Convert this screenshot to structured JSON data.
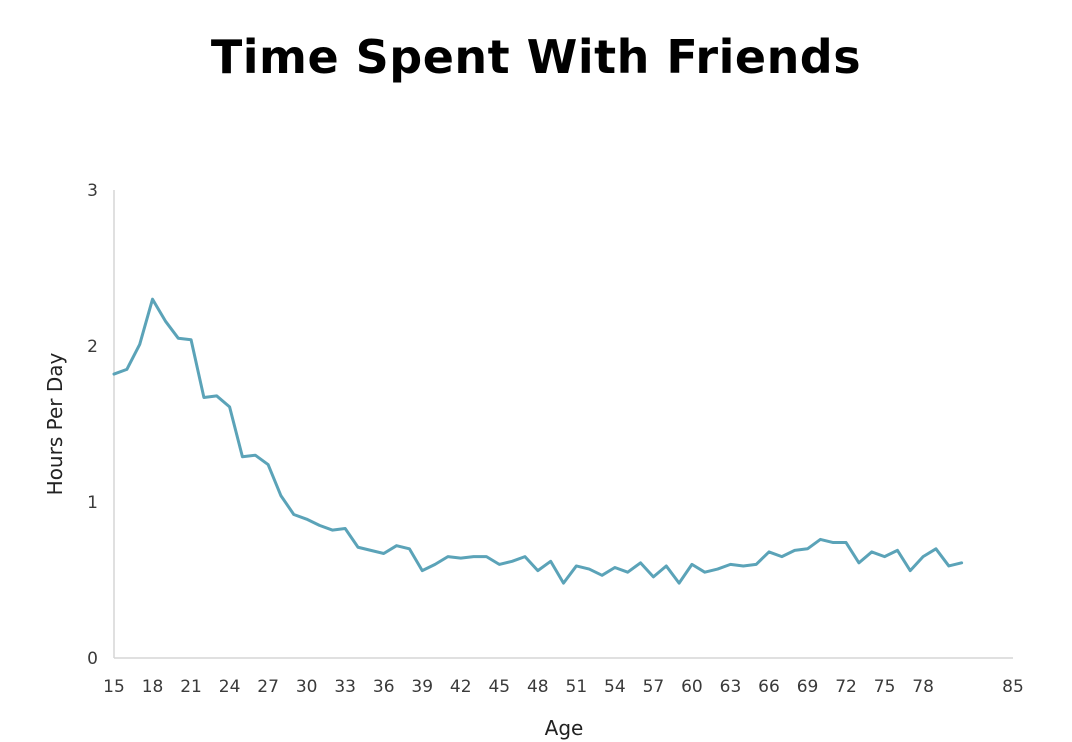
{
  "chart_data": {
    "type": "line",
    "title": "Time Spent With Friends",
    "xlabel": "Age",
    "ylabel": "Hours Per Day",
    "xlim": [
      15,
      85
    ],
    "ylim": [
      0,
      3
    ],
    "xticks": [
      15,
      18,
      21,
      24,
      27,
      30,
      33,
      36,
      39,
      42,
      45,
      48,
      51,
      54,
      57,
      60,
      63,
      66,
      69,
      72,
      75,
      78,
      85
    ],
    "yticks": [
      0,
      1,
      2,
      3
    ],
    "grid": false,
    "legend": "none",
    "line_color": "#5ba3b8",
    "series": [
      {
        "x": [
          15,
          16,
          17,
          18,
          19,
          20,
          21,
          22,
          23,
          24,
          25,
          26,
          27,
          28,
          29,
          30,
          31,
          32,
          33,
          34,
          35,
          36,
          37,
          38,
          39,
          40,
          41,
          42,
          43,
          44,
          45,
          46,
          47,
          48,
          49,
          50,
          51,
          52,
          53,
          54,
          55,
          56,
          57,
          58,
          59,
          60,
          61,
          62,
          63,
          64,
          65,
          66,
          67,
          68,
          69,
          70,
          71,
          72,
          73,
          74,
          75,
          76,
          77,
          78,
          79,
          80,
          81
        ],
        "values": [
          1.82,
          1.85,
          2.01,
          2.3,
          2.16,
          2.05,
          2.04,
          1.67,
          1.68,
          1.61,
          1.29,
          1.3,
          1.24,
          1.04,
          0.92,
          0.89,
          0.85,
          0.82,
          0.83,
          0.71,
          0.69,
          0.67,
          0.72,
          0.7,
          0.56,
          0.6,
          0.65,
          0.64,
          0.65,
          0.65,
          0.6,
          0.62,
          0.65,
          0.56,
          0.62,
          0.48,
          0.59,
          0.57,
          0.53,
          0.58,
          0.55,
          0.61,
          0.52,
          0.59,
          0.48,
          0.6,
          0.55,
          0.57,
          0.6,
          0.59,
          0.6,
          0.68,
          0.65,
          0.69,
          0.7,
          0.76,
          0.74,
          0.74,
          0.61,
          0.68,
          0.65,
          0.69,
          0.56,
          0.65,
          0.7,
          0.59,
          0.61
        ]
      }
    ]
  }
}
